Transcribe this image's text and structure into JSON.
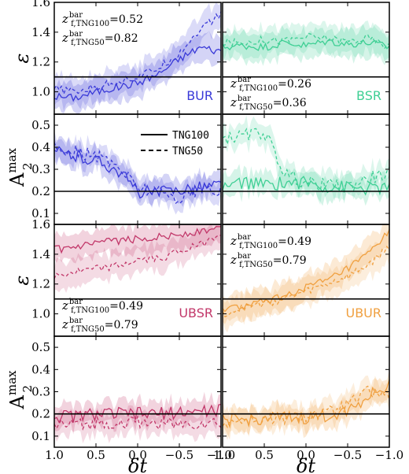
{
  "chart_data": {
    "type": "line",
    "x_label": "δt",
    "x_ticks": [
      "1.0",
      "0.5",
      "0.0",
      "−0.5",
      "−1.0"
    ],
    "x_range": [
      1.0,
      -1.0
    ],
    "legend": [
      {
        "name": "TNG100",
        "style": "solid"
      },
      {
        "name": "TNG50",
        "style": "dashed"
      }
    ],
    "rows": [
      {
        "ylabel": "ε",
        "ylim": [
          0.85,
          1.6
        ],
        "ticks": [
          "1.0",
          "1.2",
          "1.4",
          "1.6"
        ],
        "ref": 1.1
      },
      {
        "ylabel": "A",
        "ylabel_sup": "max",
        "ylabel_sub": "2",
        "ylim": [
          0.05,
          0.55
        ],
        "ticks": [
          "0.1",
          "0.2",
          "0.3",
          "0.4",
          "0.5"
        ],
        "ref": 0.2
      },
      {
        "ylabel": "ε",
        "ylim": [
          0.85,
          1.6
        ],
        "ticks": [
          "1.0",
          "1.2",
          "1.4",
          "1.6"
        ],
        "ref": 1.1
      },
      {
        "ylabel": "A",
        "ylabel_sup": "max",
        "ylabel_sub": "2",
        "ylim": [
          0.05,
          0.55
        ],
        "ticks": [
          "0.1",
          "0.2",
          "0.3",
          "0.4",
          "0.5"
        ],
        "ref": 0.2
      }
    ],
    "panels": [
      {
        "row": 0,
        "col": 0,
        "group": "BUR",
        "color": "#3a3ad8",
        "annotation": {
          "pos": "top-left",
          "lines": [
            [
              "z",
              "bar",
              "f,TNG100",
              "=0.52"
            ],
            [
              "z",
              "bar",
              "f,TNG50",
              "=0.82"
            ]
          ]
        },
        "x": [
          1.0,
          0.75,
          0.5,
          0.25,
          0.0,
          -0.25,
          -0.5,
          -0.75,
          -1.0
        ],
        "series": [
          {
            "name": "TNG100",
            "values": [
              0.97,
              0.96,
              1.0,
              1.03,
              1.06,
              1.12,
              1.22,
              1.3,
              1.27
            ]
          },
          {
            "name": "TNG50",
            "values": [
              1.02,
              1.0,
              1.03,
              1.07,
              1.1,
              1.16,
              1.26,
              1.42,
              1.52
            ]
          }
        ]
      },
      {
        "row": 0,
        "col": 1,
        "group": "BSR",
        "color": "#3ecf94",
        "annotation": {
          "pos": "bottom-left",
          "lines": [
            [
              "z",
              "bar",
              "f,TNG100",
              "=0.26"
            ],
            [
              "z",
              "bar",
              "f,TNG50",
              "=0.36"
            ]
          ]
        },
        "x": [
          1.0,
          0.75,
          0.5,
          0.25,
          0.0,
          -0.25,
          -0.5,
          -0.75,
          -1.0
        ],
        "series": [
          {
            "name": "TNG100",
            "values": [
              1.3,
              1.31,
              1.3,
              1.33,
              1.31,
              1.34,
              1.32,
              1.33,
              1.3
            ]
          },
          {
            "name": "TNG50",
            "values": [
              1.33,
              1.33,
              1.35,
              1.34,
              1.37,
              1.36,
              1.34,
              1.36,
              1.3
            ]
          }
        ]
      },
      {
        "row": 1,
        "col": 0,
        "color": "#3a3ad8",
        "show_legend": true,
        "x": [
          1.0,
          0.75,
          0.5,
          0.25,
          0.0,
          -0.25,
          -0.5,
          -0.75,
          -1.0
        ],
        "series": [
          {
            "name": "TNG100",
            "values": [
              0.38,
              0.36,
              0.34,
              0.3,
              0.2,
              0.19,
              0.21,
              0.22,
              0.23
            ]
          },
          {
            "name": "TNG50",
            "values": [
              0.4,
              0.38,
              0.36,
              0.32,
              0.22,
              0.2,
              0.17,
              0.21,
              0.2
            ]
          }
        ]
      },
      {
        "row": 1,
        "col": 1,
        "color": "#3ecf94",
        "x": [
          1.0,
          0.75,
          0.5,
          0.25,
          0.0,
          -0.25,
          -0.5,
          -0.75,
          -1.0
        ],
        "series": [
          {
            "name": "TNG100",
            "values": [
              0.22,
              0.24,
              0.23,
              0.24,
              0.24,
              0.22,
              0.22,
              0.21,
              0.22
            ]
          },
          {
            "name": "TNG50",
            "values": [
              0.44,
              0.45,
              0.47,
              0.28,
              0.24,
              0.23,
              0.22,
              0.26,
              0.28
            ]
          }
        ]
      },
      {
        "row": 2,
        "col": 0,
        "group": "UBSR",
        "color": "#c2386a",
        "annotation": {
          "pos": "bottom-left",
          "lines": [
            [
              "z",
              "bar",
              "f,TNG100",
              "=0.49"
            ],
            [
              "z",
              "bar",
              "f,TNG50",
              "=0.79"
            ]
          ]
        },
        "x": [
          1.0,
          0.75,
          0.5,
          0.25,
          0.0,
          -0.25,
          -0.5,
          -0.75,
          -1.0
        ],
        "series": [
          {
            "name": "TNG100",
            "values": [
              1.43,
              1.44,
              1.47,
              1.49,
              1.5,
              1.52,
              1.53,
              1.55,
              1.57
            ]
          },
          {
            "name": "TNG50",
            "values": [
              1.25,
              1.28,
              1.3,
              1.32,
              1.36,
              1.37,
              1.42,
              1.46,
              1.55
            ]
          }
        ]
      },
      {
        "row": 2,
        "col": 1,
        "group": "UBUR",
        "color": "#f0a040",
        "annotation": {
          "pos": "top-left",
          "lines": [
            [
              "z",
              "bar",
              "f,TNG100",
              "=0.49"
            ],
            [
              "z",
              "bar",
              "f,TNG50",
              "=0.79"
            ]
          ]
        },
        "x": [
          1.0,
          0.75,
          0.5,
          0.25,
          0.0,
          -0.25,
          -0.5,
          -0.75,
          -1.0
        ],
        "series": [
          {
            "name": "TNG100",
            "values": [
              1.03,
              1.05,
              1.08,
              1.12,
              1.18,
              1.22,
              1.3,
              1.4,
              1.55
            ]
          },
          {
            "name": "TNG50",
            "values": [
              1.0,
              1.04,
              1.07,
              1.1,
              1.15,
              1.2,
              1.25,
              1.33,
              1.45
            ]
          }
        ]
      },
      {
        "row": 3,
        "col": 0,
        "color": "#c2386a",
        "x": [
          1.0,
          0.75,
          0.5,
          0.25,
          0.0,
          -0.25,
          -0.5,
          -0.75,
          -1.0
        ],
        "series": [
          {
            "name": "TNG100",
            "values": [
              0.19,
              0.19,
              0.2,
              0.2,
              0.2,
              0.2,
              0.21,
              0.21,
              0.22
            ]
          },
          {
            "name": "TNG50",
            "values": [
              0.15,
              0.15,
              0.16,
              0.16,
              0.16,
              0.16,
              0.15,
              0.16,
              0.16
            ]
          }
        ]
      },
      {
        "row": 3,
        "col": 1,
        "color": "#f0a040",
        "x": [
          1.0,
          0.75,
          0.5,
          0.25,
          0.0,
          -0.25,
          -0.5,
          -0.75,
          -1.0
        ],
        "series": [
          {
            "name": "TNG100",
            "values": [
              0.17,
              0.17,
              0.18,
              0.18,
              0.18,
              0.19,
              0.22,
              0.28,
              0.33
            ]
          },
          {
            "name": "TNG50",
            "values": [
              0.16,
              0.17,
              0.17,
              0.18,
              0.19,
              0.2,
              0.24,
              0.3,
              0.28
            ]
          }
        ]
      }
    ]
  }
}
